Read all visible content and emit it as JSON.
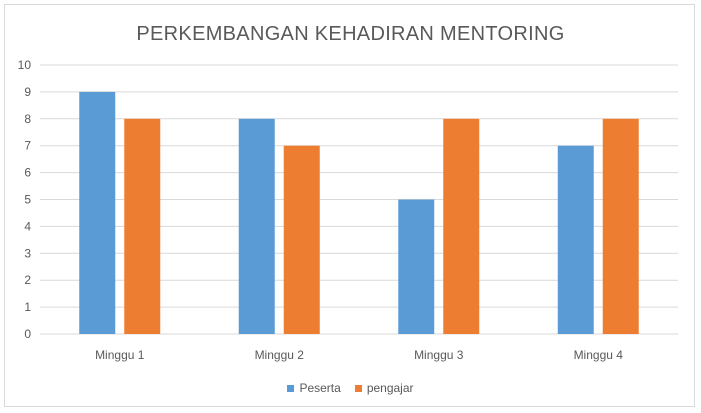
{
  "chart_data": {
    "type": "bar",
    "title": "PERKEMBANGAN KEHADIRAN MENTORING",
    "xlabel": "",
    "ylabel": "",
    "categories": [
      "Minggu 1",
      "Minggu 2",
      "Minggu 3",
      "Minggu 4"
    ],
    "series": [
      {
        "name": "Peserta",
        "values": [
          9,
          8,
          5,
          7
        ],
        "color": "#5b9bd5"
      },
      {
        "name": "pengajar",
        "values": [
          8,
          7,
          8,
          8
        ],
        "color": "#ed7d31"
      }
    ],
    "ylim": [
      0,
      10
    ],
    "yticks": [
      "0",
      "1",
      "2",
      "3",
      "4",
      "5",
      "6",
      "7",
      "8",
      "9",
      "10"
    ],
    "grid": true,
    "legend": "bottom"
  }
}
